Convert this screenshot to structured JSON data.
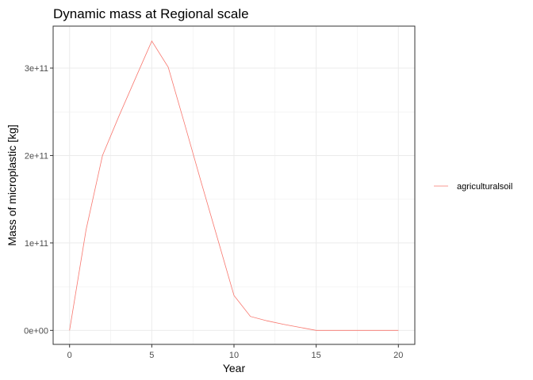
{
  "chart_data": {
    "type": "line",
    "title": "Dynamic mass at Regional scale",
    "xlabel": "Year",
    "ylabel": "Mass of microplastic [kg]",
    "xlim": [
      -1,
      21
    ],
    "ylim": [
      -16000000000.0,
      348000000000.0
    ],
    "x_ticks": [
      0,
      5,
      10,
      15,
      20
    ],
    "x_tick_labels": [
      "0",
      "5",
      "10",
      "15",
      "20"
    ],
    "y_ticks": [
      0,
      100000000000,
      200000000000,
      300000000000
    ],
    "y_tick_labels": [
      "0e+00",
      "1e+11",
      "2e+11",
      "3e+11"
    ],
    "grid": true,
    "legend_position": "right",
    "series": [
      {
        "name": "agriculturalsoil",
        "color": "#F8766D",
        "x": [
          0,
          1,
          2,
          3,
          4,
          5,
          6,
          7,
          8,
          9,
          10,
          11,
          12,
          13,
          14,
          15,
          16,
          17,
          18,
          19,
          20
        ],
        "y": [
          0,
          115000000000,
          200000000000,
          245000000000,
          288000000000,
          331000000000,
          301000000000,
          236000000000,
          170000000000,
          105000000000,
          40000000000,
          16000000000,
          11000000000,
          7000000000,
          3500000000,
          0,
          0,
          0,
          0,
          0,
          0
        ]
      }
    ]
  }
}
